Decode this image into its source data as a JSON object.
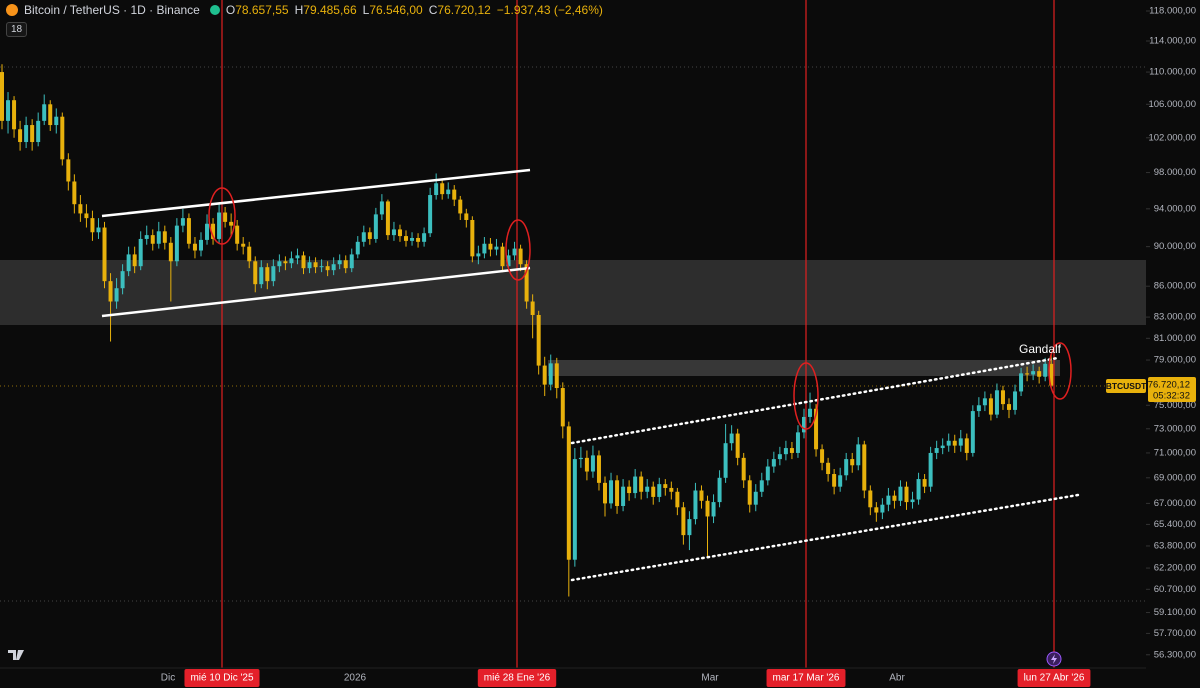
{
  "header": {
    "title": "Bitcoin / TetherUS · 1D · Binance",
    "ohlc": [
      {
        "label": "O",
        "value": "78.657,55"
      },
      {
        "label": "H",
        "value": "79.485,66"
      },
      {
        "label": "L",
        "value": "76.546,00"
      },
      {
        "label": "C",
        "value": "76.720,12"
      }
    ],
    "change": "−1.937,43 (−2,46%)",
    "indicator_badge": "18"
  },
  "chart_data": {
    "type": "candlestick",
    "log_scale": true,
    "grid": false,
    "up_color": "#3cbfbf",
    "down_color": "#e8b10c",
    "ylim": [
      55450,
      119500
    ],
    "yticks": [
      {
        "value": 118000,
        "label": "118.000,00"
      },
      {
        "value": 114000,
        "label": "114.000,00"
      },
      {
        "value": 110000,
        "label": "110.000,00"
      },
      {
        "value": 106000,
        "label": "106.000,00"
      },
      {
        "value": 102000,
        "label": "102.000,00"
      },
      {
        "value": 98000,
        "label": "98.000,00"
      },
      {
        "value": 94000,
        "label": "94.000,00"
      },
      {
        "value": 90000,
        "label": "90.000,00"
      },
      {
        "value": 86000,
        "label": "86.000,00"
      },
      {
        "value": 83000,
        "label": "83.000,00"
      },
      {
        "value": 81000,
        "label": "81.000,00"
      },
      {
        "value": 79000,
        "label": "79.000,00"
      },
      {
        "value": 75000,
        "label": "75.000,00"
      },
      {
        "value": 73000,
        "label": "73.000,00"
      },
      {
        "value": 71000,
        "label": "71.000,00"
      },
      {
        "value": 69000,
        "label": "69.000,00"
      },
      {
        "value": 67000,
        "label": "67.000,00"
      },
      {
        "value": 65400,
        "label": "65.400,00"
      },
      {
        "value": 63800,
        "label": "63.800,00"
      },
      {
        "value": 62200,
        "label": "62.200,00"
      },
      {
        "value": 60700,
        "label": "60.700,00"
      },
      {
        "value": 59100,
        "label": "59.100,00"
      },
      {
        "value": 57700,
        "label": "57.700,00"
      },
      {
        "value": 56300,
        "label": "56.300,00"
      }
    ],
    "x_labels": [
      "Dic",
      "2026",
      "Mar",
      "Abr"
    ],
    "date_markers": [
      "mié 10 Dic '25",
      "mié 28 Ene '26",
      "mar 17 Mar '26",
      "lun 27 Abr '26"
    ],
    "symbol_tag": "BTCUSDT",
    "last_price_label": "76.720,12",
    "countdown": "05:32:32",
    "annotation": "Gandalf",
    "open": [
      110000,
      104000,
      106500,
      103000,
      101500,
      103500,
      101500,
      104000,
      106000,
      103500,
      104500,
      99500,
      97000,
      94500,
      93500,
      93000,
      91500,
      92000,
      86500,
      84500,
      85800,
      87500,
      89200,
      88000,
      90800,
      91200,
      90300,
      91600,
      90400,
      88500,
      92200,
      93000,
      90300,
      89600,
      90700,
      92400,
      90800,
      93600,
      92600,
      92200,
      90300,
      90000,
      88500,
      86200,
      87900,
      86500,
      88000,
      88500,
      88300,
      88800,
      89100,
      87800,
      88400,
      87900,
      88000,
      87600,
      88200,
      88600,
      87800,
      89200,
      90500,
      91500,
      90800,
      93400,
      94800,
      91200,
      91800,
      91100,
      90600,
      90900,
      90500,
      91400,
      95500,
      96800,
      95600,
      96100,
      95000,
      93500,
      92800,
      89000,
      89300,
      90300,
      89700,
      90000,
      88000,
      89100,
      89800,
      88200,
      84500,
      83200,
      78500,
      76800,
      78700,
      76500,
      73200,
      62800,
      70500,
      70600,
      69500,
      70800,
      68600,
      67000,
      68800,
      66800,
      68300,
      67800,
      69100,
      67900,
      68300,
      67500,
      68500,
      68200,
      67900,
      66700,
      64600,
      65800,
      68000,
      67200,
      66000,
      67100,
      69000,
      71800,
      72600,
      70600,
      68800,
      66900,
      67900,
      68800,
      69900,
      70500,
      70900,
      71400,
      71000,
      72700,
      74000,
      74700,
      71300,
      70200,
      69300,
      68300,
      69200,
      70500,
      70000,
      71700,
      68000,
      66700,
      66300,
      66900,
      67600,
      67200,
      68300,
      67100,
      67300,
      68900,
      68300,
      71000,
      71400,
      71600,
      72000,
      71600,
      72200,
      71000,
      74500,
      75000,
      75600,
      74200,
      76300,
      75100,
      74600,
      76200,
      77800,
      77700,
      78000,
      77500,
      78657.55
    ],
    "high": [
      111000,
      107500,
      107000,
      104000,
      104500,
      104200,
      105000,
      107200,
      106500,
      105500,
      105000,
      100200,
      97800,
      95500,
      94500,
      93800,
      93000,
      92600,
      87300,
      86800,
      88200,
      90000,
      90000,
      91600,
      92200,
      91800,
      92600,
      92200,
      91000,
      93000,
      94000,
      93500,
      91000,
      91500,
      93400,
      93000,
      94500,
      94200,
      93500,
      92800,
      91000,
      90500,
      89000,
      88600,
      88300,
      88700,
      89200,
      89000,
      89500,
      89800,
      89500,
      89000,
      88900,
      88700,
      88500,
      88900,
      89200,
      89100,
      89800,
      91100,
      92200,
      92000,
      94100,
      95600,
      95000,
      92600,
      92300,
      91700,
      91500,
      91400,
      92000,
      96300,
      97900,
      97300,
      96900,
      96600,
      95400,
      94000,
      93200,
      90100,
      91000,
      90900,
      90800,
      90400,
      89700,
      90500,
      90200,
      88600,
      85200,
      83600,
      79300,
      79500,
      79200,
      77000,
      73600,
      71400,
      71500,
      71200,
      71600,
      71200,
      69100,
      69400,
      69200,
      68900,
      68800,
      69700,
      69500,
      68900,
      68700,
      69000,
      68900,
      68700,
      68200,
      67100,
      66400,
      68600,
      68400,
      67600,
      67700,
      69600,
      73400,
      73300,
      73000,
      71000,
      69200,
      68500,
      69400,
      70500,
      71100,
      71500,
      72000,
      71900,
      73300,
      74700,
      76100,
      75100,
      71700,
      70600,
      69700,
      69800,
      71000,
      71000,
      72300,
      72000,
      68400,
      67100,
      67400,
      68200,
      68000,
      68800,
      68700,
      67900,
      69400,
      69300,
      71500,
      72000,
      72200,
      72600,
      72500,
      72900,
      72600,
      75000,
      75700,
      76200,
      76000,
      76900,
      76700,
      75600,
      76800,
      78300,
      78400,
      78600,
      78400,
      79200,
      79485.66
    ],
    "low": [
      103000,
      102500,
      102000,
      100500,
      100800,
      100500,
      101000,
      103500,
      102800,
      102500,
      98800,
      96000,
      93500,
      92600,
      92000,
      90600,
      90800,
      85800,
      80700,
      83800,
      85200,
      87000,
      87300,
      87600,
      90200,
      89600,
      89800,
      89700,
      84500,
      88000,
      91500,
      89800,
      88800,
      89000,
      90200,
      90200,
      90300,
      92000,
      91200,
      89600,
      89200,
      87800,
      85400,
      85800,
      85700,
      86000,
      87400,
      87600,
      87800,
      88200,
      87200,
      87300,
      87300,
      87400,
      87000,
      87100,
      87700,
      87300,
      87400,
      88800,
      90000,
      90200,
      90400,
      92800,
      90700,
      90600,
      90500,
      90000,
      90100,
      89900,
      90000,
      91000,
      95000,
      95000,
      95100,
      94300,
      92800,
      92000,
      88400,
      88200,
      88800,
      89000,
      89100,
      87400,
      87500,
      88600,
      87500,
      83800,
      81000,
      77700,
      75800,
      76300,
      75600,
      72200,
      60200,
      62300,
      69800,
      68800,
      69000,
      68000,
      66000,
      66600,
      66200,
      66400,
      67200,
      67400,
      67300,
      67400,
      66900,
      67100,
      67600,
      67300,
      66100,
      63900,
      63500,
      65400,
      66600,
      63000,
      65500,
      66700,
      68600,
      71200,
      70000,
      68200,
      66300,
      66400,
      67500,
      68400,
      69400,
      70000,
      70400,
      70500,
      70600,
      72200,
      73500,
      70700,
      69600,
      68700,
      67700,
      67900,
      68800,
      69400,
      69600,
      67400,
      66100,
      65600,
      65800,
      66400,
      66600,
      66800,
      66500,
      66600,
      66900,
      67800,
      67900,
      70500,
      70900,
      71100,
      71000,
      71100,
      70400,
      70700,
      74000,
      74500,
      73700,
      73900,
      74600,
      73900,
      74200,
      75800,
      77100,
      77200,
      76900,
      77100,
      76546
    ],
    "close": [
      104000,
      106500,
      103000,
      101500,
      103500,
      101500,
      104000,
      106000,
      103500,
      104500,
      99500,
      97000,
      94500,
      93500,
      93000,
      91500,
      92000,
      86500,
      84500,
      85800,
      87500,
      89200,
      88000,
      90800,
      91200,
      90300,
      91600,
      90400,
      88500,
      92200,
      93000,
      90300,
      89600,
      90700,
      92400,
      90800,
      93600,
      92600,
      92200,
      90300,
      90000,
      88500,
      86200,
      87900,
      86500,
      88000,
      88500,
      88300,
      88800,
      89100,
      87800,
      88400,
      87900,
      88000,
      87600,
      88200,
      88600,
      87800,
      89200,
      90500,
      91500,
      90800,
      93400,
      94800,
      91200,
      91800,
      91100,
      90600,
      90900,
      90500,
      91400,
      95500,
      96800,
      95600,
      96100,
      95000,
      93500,
      92800,
      89000,
      89300,
      90300,
      89700,
      90000,
      88000,
      89100,
      89800,
      88200,
      84500,
      83200,
      78500,
      76800,
      78700,
      76500,
      73200,
      62800,
      70500,
      70600,
      69500,
      70800,
      68600,
      67000,
      68800,
      66800,
      68300,
      67800,
      69100,
      67900,
      68300,
      67500,
      68500,
      68200,
      67900,
      66700,
      64600,
      65800,
      68000,
      67200,
      66000,
      67100,
      69000,
      71800,
      72600,
      70600,
      68800,
      66900,
      67900,
      68800,
      69900,
      70500,
      70900,
      71400,
      71000,
      72700,
      74000,
      74700,
      71300,
      70200,
      69300,
      68300,
      69200,
      70500,
      70000,
      71700,
      68000,
      66700,
      66300,
      66900,
      67600,
      67200,
      68300,
      67100,
      67300,
      68900,
      68300,
      71000,
      71400,
      71600,
      72000,
      71600,
      72200,
      71000,
      74500,
      75000,
      75600,
      74200,
      76300,
      75100,
      74600,
      76200,
      77800,
      77700,
      78000,
      77500,
      78657.55,
      76720.12
    ]
  }
}
